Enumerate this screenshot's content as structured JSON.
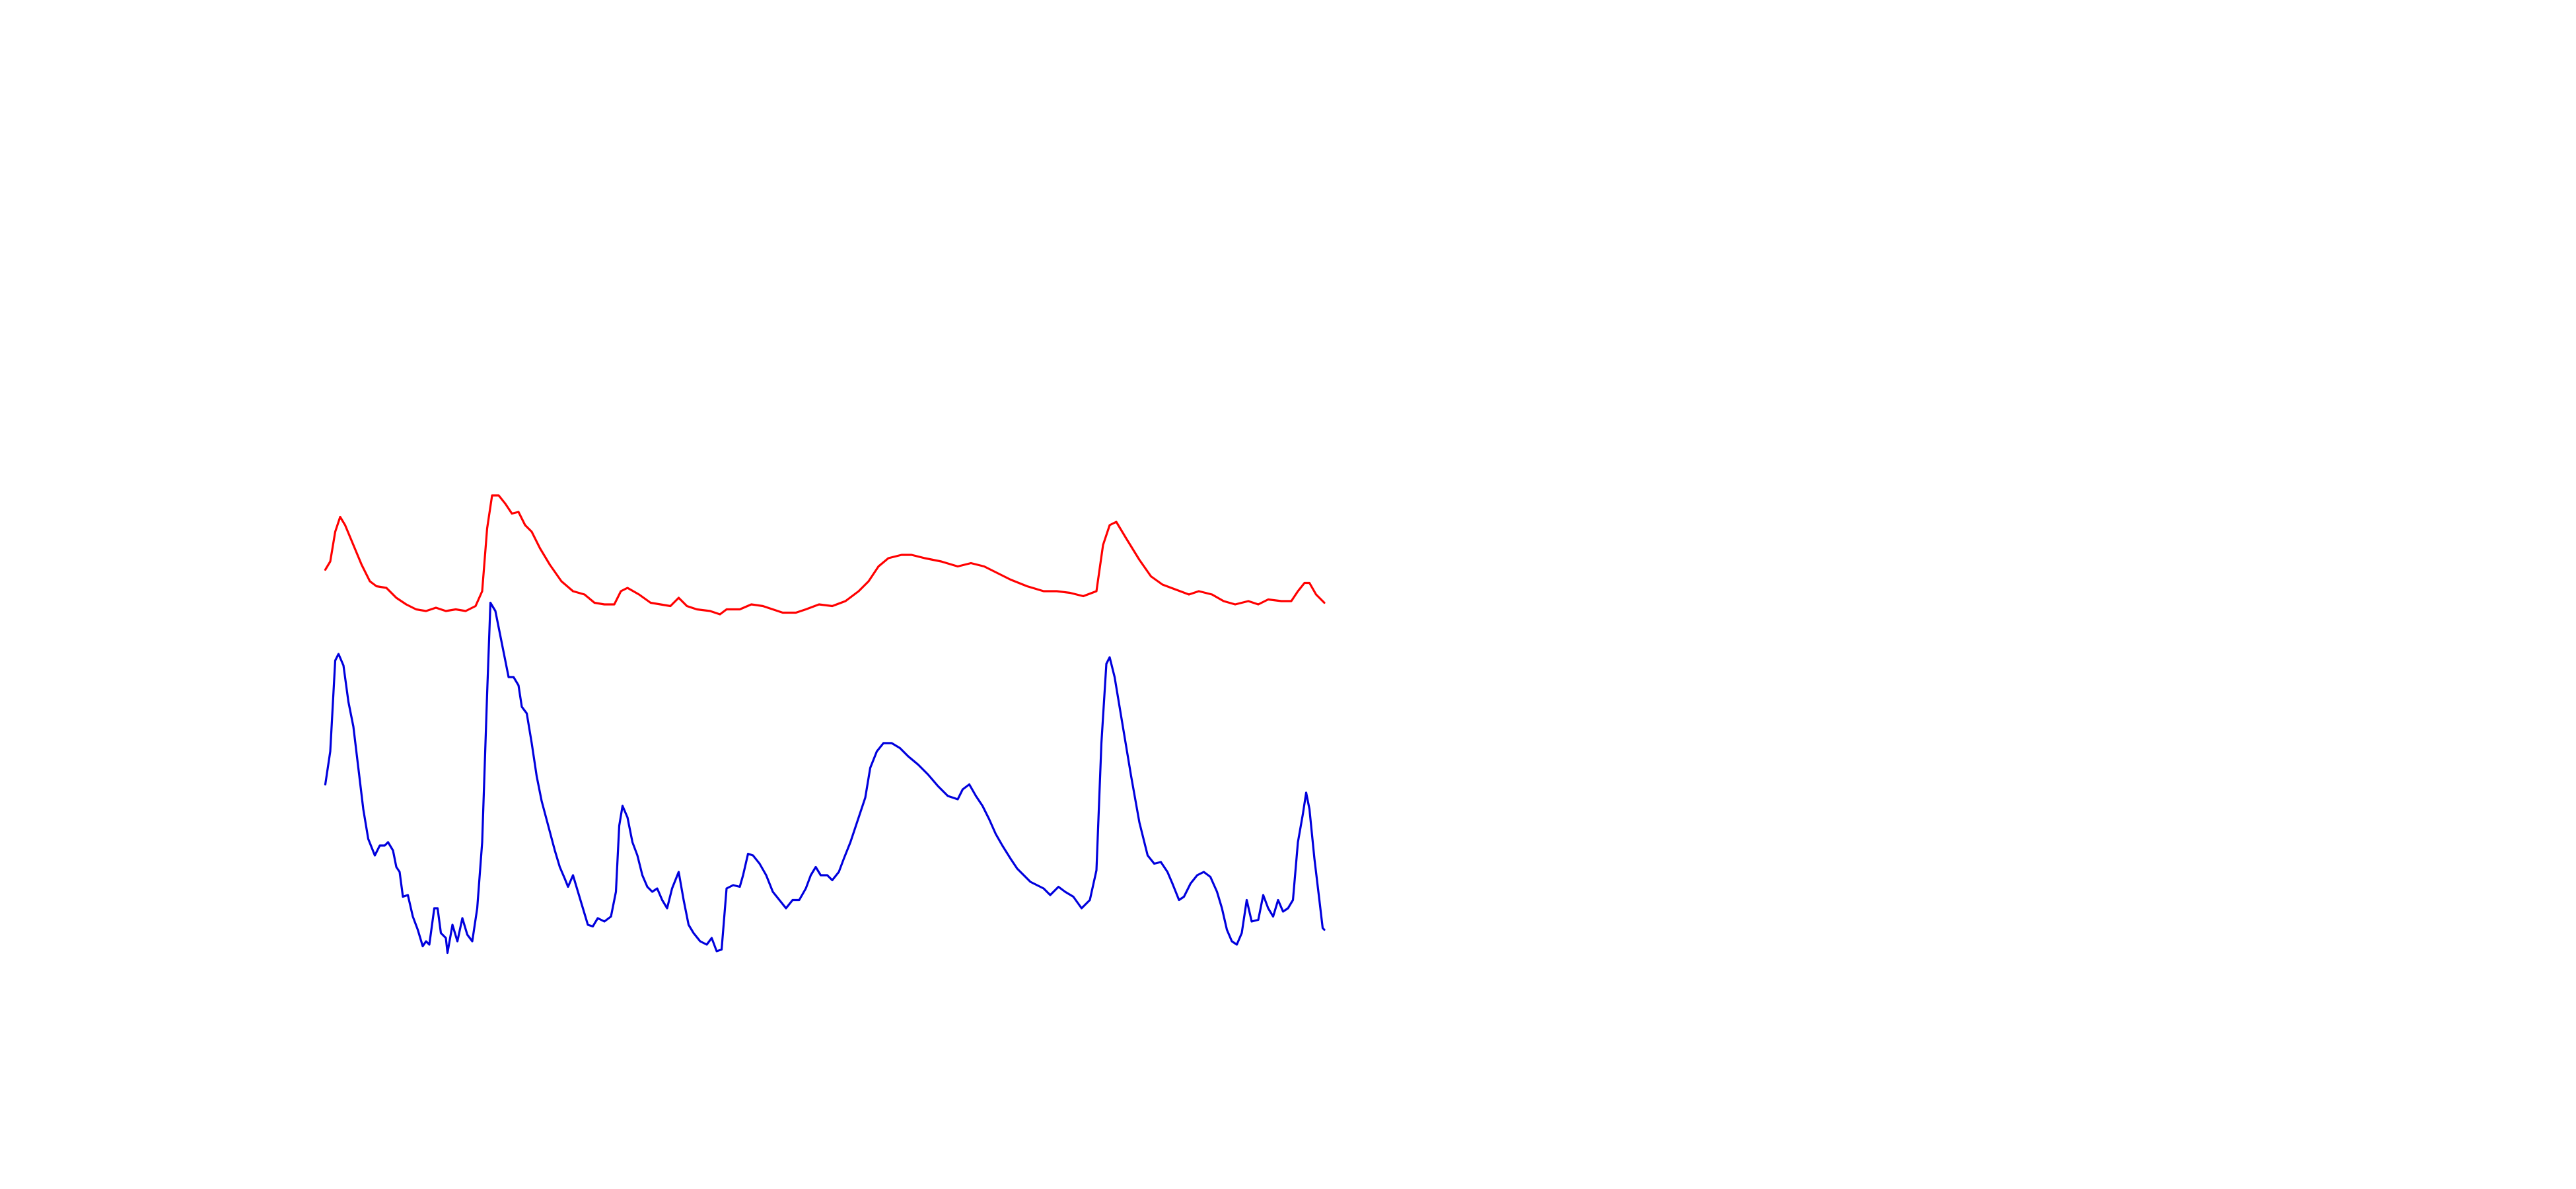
{
  "chart_data": {
    "type": "line",
    "xlim": [
      0,
      605
    ],
    "ylim": [
      0,
      310
    ],
    "series": [
      {
        "color": "#ff0000",
        "x": [
          0,
          3,
          6,
          9,
          12,
          17,
          22,
          27,
          31,
          37,
          43,
          49,
          55,
          61,
          67,
          73,
          79,
          85,
          91,
          95,
          98,
          101,
          105,
          109,
          113,
          117,
          121,
          125,
          130,
          136,
          143,
          150,
          157,
          163,
          169,
          175,
          179,
          183,
          190,
          197,
          203,
          209,
          214,
          219,
          225,
          233,
          239,
          243,
          251,
          258,
          265,
          271,
          277,
          285,
          291,
          299,
          307,
          315,
          323,
          329,
          335,
          341,
          349,
          355,
          363,
          373,
          383,
          391,
          399,
          407,
          415,
          425,
          435,
          443,
          451,
          459,
          467,
          471,
          475,
          479,
          485,
          493,
          500,
          507,
          515,
          523,
          529,
          537,
          544,
          551,
          559,
          565,
          571,
          579,
          585,
          589,
          593,
          596,
          600,
          605
        ],
        "values": [
          245,
          250,
          268,
          277,
          272,
          260,
          248,
          238,
          235,
          234,
          228,
          224,
          221,
          220,
          222,
          220,
          221,
          220,
          223,
          232,
          270,
          290,
          290,
          285,
          279,
          280,
          272,
          268,
          258,
          248,
          238,
          232,
          230,
          225,
          224,
          224,
          232,
          234,
          230,
          225,
          224,
          223,
          228,
          223,
          221,
          220,
          218,
          221,
          221,
          224,
          223,
          221,
          219,
          219,
          221,
          224,
          223,
          226,
          232,
          238,
          247,
          252,
          254,
          254,
          252,
          250,
          247,
          249,
          247,
          243,
          239,
          235,
          232,
          232,
          231,
          229,
          232,
          260,
          272,
          274,
          264,
          251,
          241,
          236,
          233,
          230,
          232,
          230,
          226,
          224,
          226,
          224,
          227,
          226,
          226,
          232,
          237,
          237,
          230,
          225
        ]
      },
      {
        "color": "#0000dd",
        "x": [
          0,
          3,
          6,
          8,
          11,
          14,
          17,
          20,
          23,
          26,
          30,
          33,
          36,
          38,
          41,
          43,
          45,
          47,
          50,
          53,
          56,
          59,
          61,
          63,
          66,
          68,
          70,
          73,
          74,
          77,
          80,
          83,
          86,
          89,
          92,
          95,
          98,
          100,
          103,
          107,
          111,
          114,
          117,
          119,
          122,
          125,
          128,
          131,
          135,
          139,
          142,
          145,
          147,
          150,
          153,
          156,
          159,
          162,
          165,
          169,
          173,
          176,
          178,
          180,
          183,
          186,
          189,
          192,
          195,
          198,
          201,
          204,
          207,
          210,
          214,
          217,
          220,
          223,
          227,
          231,
          234,
          237,
          240,
          243,
          247,
          251,
          253,
          256,
          259,
          263,
          267,
          271,
          275,
          279,
          283,
          287,
          291,
          294,
          297,
          300,
          304,
          307,
          311,
          314,
          318,
          323,
          327,
          330,
          334,
          338,
          343,
          348,
          353,
          359,
          365,
          371,
          377,
          383,
          386,
          390,
          394,
          398,
          402,
          406,
          410,
          415,
          419,
          423,
          427,
          431,
          435,
          439,
          444,
          448,
          453,
          458,
          463,
          467,
          470,
          473,
          475,
          478,
          483,
          488,
          493,
          498,
          502,
          506,
          510,
          513,
          517,
          520,
          524,
          528,
          532,
          536,
          540,
          543,
          546,
          549,
          552,
          555,
          558,
          561,
          565,
          568,
          571,
          574,
          577,
          580,
          583,
          586,
          589,
          592,
          594,
          596,
          599,
          602,
          604,
          605
        ],
        "values": [
          115,
          135,
          190,
          194,
          187,
          165,
          150,
          125,
          100,
          82,
          72,
          78,
          78,
          80,
          75,
          65,
          62,
          47,
          48,
          35,
          27,
          17,
          20,
          18,
          40,
          40,
          25,
          22,
          13,
          30,
          20,
          34,
          24,
          20,
          40,
          80,
          170,
          225,
          220,
          200,
          180,
          180,
          175,
          162,
          158,
          140,
          120,
          105,
          90,
          75,
          65,
          58,
          53,
          60,
          50,
          40,
          30,
          29,
          34,
          32,
          35,
          50,
          90,
          102,
          95,
          80,
          72,
          60,
          53,
          50,
          52,
          45,
          40,
          52,
          62,
          45,
          30,
          25,
          20,
          18,
          22,
          14,
          15,
          52,
          54,
          53,
          60,
          73,
          72,
          67,
          60,
          50,
          45,
          40,
          45,
          45,
          52,
          60,
          65,
          60,
          60,
          57,
          62,
          70,
          80,
          95,
          107,
          125,
          135,
          140,
          140,
          137,
          132,
          127,
          121,
          114,
          108,
          106,
          112,
          115,
          108,
          102,
          94,
          85,
          78,
          70,
          64,
          60,
          56,
          54,
          52,
          48,
          53,
          50,
          47,
          40,
          45,
          63,
          140,
          188,
          192,
          180,
          150,
          120,
          92,
          72,
          67,
          68,
          62,
          55,
          45,
          47,
          55,
          60,
          62,
          59,
          50,
          40,
          27,
          20,
          18,
          25,
          45,
          32,
          33,
          48,
          40,
          35,
          45,
          38,
          40,
          45,
          80,
          97,
          110,
          100,
          70,
          45,
          28,
          27
        ]
      }
    ]
  }
}
